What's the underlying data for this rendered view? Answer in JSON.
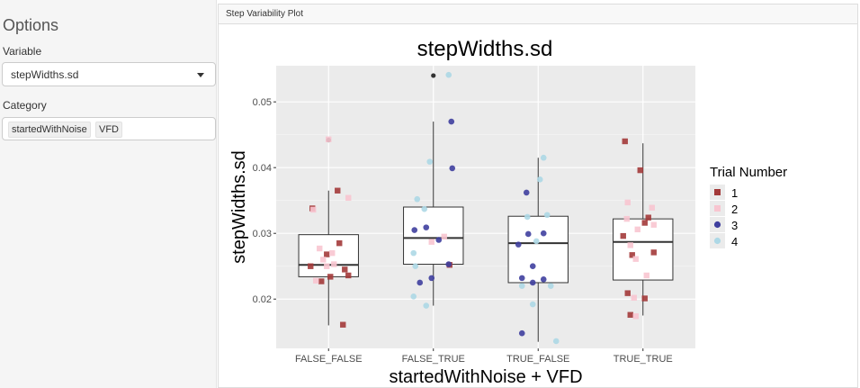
{
  "sidebar": {
    "title": "Options",
    "variable_label": "Variable",
    "variable_value": "stepWidths.sd",
    "category_label": "Category",
    "category_chips": [
      "startedWithNoise",
      "VFD"
    ]
  },
  "panel": {
    "title": "Step Variability Plot"
  },
  "chart_data": {
    "type": "box",
    "title": "stepWidths.sd",
    "xlabel": "startedWithNoise + VFD",
    "ylabel": "stepWidths.sd",
    "categories": [
      "FALSE_FALSE",
      "FALSE_TRUE",
      "TRUE_FALSE",
      "TRUE_TRUE"
    ],
    "ylim": [
      0.0125,
      0.0555
    ],
    "yticks": [
      0.02,
      0.03,
      0.04,
      0.05
    ],
    "ytick_labels": [
      "0.02",
      "0.03",
      "0.04",
      "0.05"
    ],
    "grid": true,
    "legend": {
      "title": "Trial Number",
      "position": "right",
      "entries": [
        {
          "label": "1",
          "color": "#a33a3a",
          "shape": "square"
        },
        {
          "label": "2",
          "color": "#f8c5d0",
          "shape": "square"
        },
        {
          "label": "3",
          "color": "#3f3f9e",
          "shape": "circle"
        },
        {
          "label": "4",
          "color": "#add8e6",
          "shape": "circle"
        }
      ]
    },
    "boxes": [
      {
        "min": 0.016,
        "q1": 0.0234,
        "median": 0.0252,
        "q3": 0.0298,
        "max": 0.0365,
        "outliers": [
          0.0442
        ]
      },
      {
        "min": 0.019,
        "q1": 0.0253,
        "median": 0.0293,
        "q3": 0.034,
        "max": 0.047,
        "outliers": [
          0.054
        ]
      },
      {
        "min": 0.0135,
        "q1": 0.0225,
        "median": 0.0285,
        "q3": 0.0326,
        "max": 0.0415,
        "outliers": []
      },
      {
        "min": 0.0175,
        "q1": 0.0229,
        "median": 0.0287,
        "q3": 0.0322,
        "max": 0.0437,
        "outliers": []
      }
    ],
    "points": [
      {
        "c": 0,
        "dx": -18,
        "y": 0.0338,
        "t": 1
      },
      {
        "c": 0,
        "dx": 10,
        "y": 0.0365,
        "t": 1
      },
      {
        "c": 0,
        "dx": 12,
        "y": 0.0285,
        "t": 1
      },
      {
        "c": 0,
        "dx": -2,
        "y": 0.0268,
        "t": 1
      },
      {
        "c": 0,
        "dx": -20,
        "y": 0.025,
        "t": 1
      },
      {
        "c": 0,
        "dx": 18,
        "y": 0.0245,
        "t": 1
      },
      {
        "c": 0,
        "dx": 2,
        "y": 0.0234,
        "t": 1
      },
      {
        "c": 0,
        "dx": -8,
        "y": 0.0227,
        "t": 1
      },
      {
        "c": 0,
        "dx": 22,
        "y": 0.0236,
        "t": 1
      },
      {
        "c": 0,
        "dx": 16,
        "y": 0.0161,
        "t": 1
      },
      {
        "c": 0,
        "dx": 0,
        "y": 0.0443,
        "t": 2
      },
      {
        "c": 0,
        "dx": 22,
        "y": 0.0354,
        "t": 2
      },
      {
        "c": 0,
        "dx": -17,
        "y": 0.0336,
        "t": 2
      },
      {
        "c": 0,
        "dx": -10,
        "y": 0.0277,
        "t": 2
      },
      {
        "c": 0,
        "dx": 4,
        "y": 0.027,
        "t": 2
      },
      {
        "c": 0,
        "dx": 6,
        "y": 0.0253,
        "t": 2
      },
      {
        "c": 0,
        "dx": -6,
        "y": 0.026,
        "t": 2
      },
      {
        "c": 0,
        "dx": -14,
        "y": 0.0228,
        "t": 2
      },
      {
        "c": 0,
        "dx": -2,
        "y": 0.025,
        "t": 2
      },
      {
        "c": 1,
        "dx": 18,
        "y": 0.0252,
        "t": 1
      },
      {
        "c": 1,
        "dx": 12,
        "y": 0.0295,
        "t": 2
      },
      {
        "c": 1,
        "dx": -2,
        "y": 0.0287,
        "t": 2
      },
      {
        "c": 1,
        "dx": 20,
        "y": 0.047,
        "t": 3
      },
      {
        "c": 1,
        "dx": 21,
        "y": 0.0399,
        "t": 3
      },
      {
        "c": 1,
        "dx": -8,
        "y": 0.0309,
        "t": 3
      },
      {
        "c": 1,
        "dx": -21,
        "y": 0.0305,
        "t": 3
      },
      {
        "c": 1,
        "dx": 6,
        "y": 0.029,
        "t": 3
      },
      {
        "c": 1,
        "dx": -2,
        "y": 0.0232,
        "t": 3
      },
      {
        "c": 1,
        "dx": -15,
        "y": 0.0225,
        "t": 3
      },
      {
        "c": 1,
        "dx": 17,
        "y": 0.0253,
        "t": 3
      },
      {
        "c": 1,
        "dx": 17,
        "y": 0.0541,
        "t": 4
      },
      {
        "c": 1,
        "dx": -4,
        "y": 0.0409,
        "t": 4
      },
      {
        "c": 1,
        "dx": -18,
        "y": 0.0352,
        "t": 4
      },
      {
        "c": 1,
        "dx": -10,
        "y": 0.0337,
        "t": 4
      },
      {
        "c": 1,
        "dx": -22,
        "y": 0.027,
        "t": 4
      },
      {
        "c": 1,
        "dx": -20,
        "y": 0.025,
        "t": 4
      },
      {
        "c": 1,
        "dx": -22,
        "y": 0.0204,
        "t": 4
      },
      {
        "c": 1,
        "dx": -8,
        "y": 0.019,
        "t": 4
      },
      {
        "c": 2,
        "dx": -13,
        "y": 0.0362,
        "t": 3
      },
      {
        "c": 2,
        "dx": -11,
        "y": 0.0299,
        "t": 3
      },
      {
        "c": 2,
        "dx": 6,
        "y": 0.03,
        "t": 3
      },
      {
        "c": 2,
        "dx": -22,
        "y": 0.0283,
        "t": 3
      },
      {
        "c": 2,
        "dx": -6,
        "y": 0.025,
        "t": 3
      },
      {
        "c": 2,
        "dx": -18,
        "y": 0.0232,
        "t": 3
      },
      {
        "c": 2,
        "dx": 6,
        "y": 0.023,
        "t": 3
      },
      {
        "c": 2,
        "dx": -6,
        "y": 0.0225,
        "t": 3
      },
      {
        "c": 2,
        "dx": -18,
        "y": 0.0148,
        "t": 3
      },
      {
        "c": 2,
        "dx": 6,
        "y": 0.0415,
        "t": 4
      },
      {
        "c": 2,
        "dx": 2,
        "y": 0.0382,
        "t": 4
      },
      {
        "c": 2,
        "dx": -12,
        "y": 0.0325,
        "t": 4
      },
      {
        "c": 2,
        "dx": 10,
        "y": 0.0328,
        "t": 4
      },
      {
        "c": 2,
        "dx": -2,
        "y": 0.0288,
        "t": 4
      },
      {
        "c": 2,
        "dx": -18,
        "y": 0.022,
        "t": 4
      },
      {
        "c": 2,
        "dx": 14,
        "y": 0.022,
        "t": 4
      },
      {
        "c": 2,
        "dx": -6,
        "y": 0.0192,
        "t": 4
      },
      {
        "c": 2,
        "dx": 20,
        "y": 0.0136,
        "t": 4
      },
      {
        "c": 3,
        "dx": -20,
        "y": 0.044,
        "t": 1
      },
      {
        "c": 3,
        "dx": -3,
        "y": 0.0396,
        "t": 1
      },
      {
        "c": 3,
        "dx": 6,
        "y": 0.0324,
        "t": 1
      },
      {
        "c": 3,
        "dx": 2,
        "y": 0.0316,
        "t": 1
      },
      {
        "c": 3,
        "dx": -22,
        "y": 0.0296,
        "t": 1
      },
      {
        "c": 3,
        "dx": -12,
        "y": 0.0267,
        "t": 1
      },
      {
        "c": 3,
        "dx": 12,
        "y": 0.0271,
        "t": 1
      },
      {
        "c": 3,
        "dx": -17,
        "y": 0.0209,
        "t": 1
      },
      {
        "c": 3,
        "dx": 2,
        "y": 0.0201,
        "t": 1
      },
      {
        "c": 3,
        "dx": -14,
        "y": 0.0176,
        "t": 1
      },
      {
        "c": 3,
        "dx": -17,
        "y": 0.0347,
        "t": 2
      },
      {
        "c": 3,
        "dx": 10,
        "y": 0.0339,
        "t": 2
      },
      {
        "c": 3,
        "dx": -18,
        "y": 0.0322,
        "t": 2
      },
      {
        "c": 3,
        "dx": -6,
        "y": 0.0306,
        "t": 2
      },
      {
        "c": 3,
        "dx": 12,
        "y": 0.0313,
        "t": 2
      },
      {
        "c": 3,
        "dx": -8,
        "y": 0.0261,
        "t": 2
      },
      {
        "c": 3,
        "dx": -14,
        "y": 0.0282,
        "t": 2
      },
      {
        "c": 3,
        "dx": 4,
        "y": 0.0236,
        "t": 2
      },
      {
        "c": 3,
        "dx": -10,
        "y": 0.0202,
        "t": 2
      },
      {
        "c": 3,
        "dx": -8,
        "y": 0.0174,
        "t": 2
      }
    ]
  }
}
